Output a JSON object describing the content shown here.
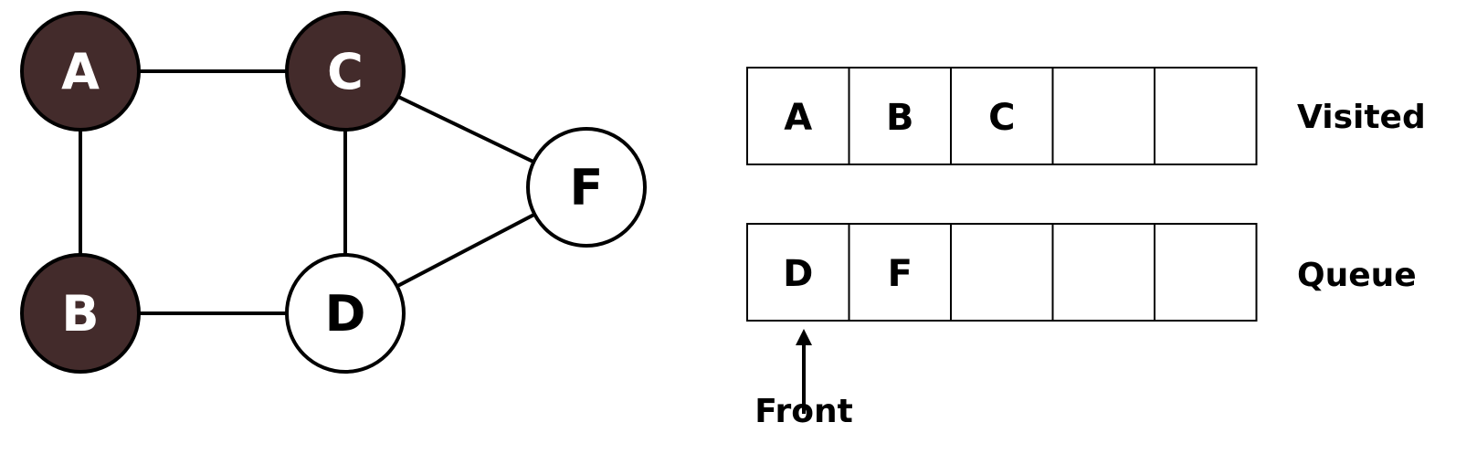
{
  "colors": {
    "visited_fill": "#432b2b",
    "unvisited_fill": "#ffffff",
    "stroke": "#000000",
    "visited_text": "#ffffff",
    "unvisited_text": "#000000"
  },
  "graph": {
    "nodes": [
      {
        "id": "A",
        "label": "A",
        "visited": true
      },
      {
        "id": "C",
        "label": "C",
        "visited": true
      },
      {
        "id": "B",
        "label": "B",
        "visited": true
      },
      {
        "id": "D",
        "label": "D",
        "visited": false
      },
      {
        "id": "F",
        "label": "F",
        "visited": false
      }
    ],
    "edges": [
      [
        "A",
        "C"
      ],
      [
        "A",
        "B"
      ],
      [
        "C",
        "D"
      ],
      [
        "B",
        "D"
      ],
      [
        "C",
        "F"
      ],
      [
        "D",
        "F"
      ]
    ]
  },
  "visited": {
    "label": "Visited",
    "cells": [
      "A",
      "B",
      "C",
      "",
      ""
    ]
  },
  "queue": {
    "label": "Queue",
    "cells": [
      "D",
      "F",
      "",
      "",
      ""
    ],
    "pointer_label": "Front"
  }
}
